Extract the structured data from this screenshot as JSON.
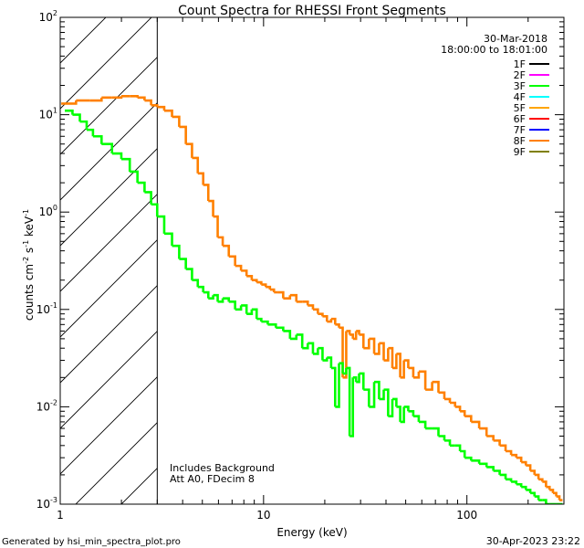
{
  "chart_data": {
    "type": "line",
    "title": "Count Spectra for RHESSI Front Segments",
    "xlabel": "Energy (keV)",
    "ylabel": "counts cm",
    "ylabel_sup": "-2",
    "ylabel_mid": " s",
    "ylabel_sup2": "-1",
    "ylabel_end": " keV",
    "ylabel_sup3": "-1",
    "xscale": "log",
    "yscale": "log",
    "xlim": [
      1,
      300
    ],
    "ylim": [
      0.001,
      100
    ],
    "x_ticks": [
      {
        "value": 1,
        "label": "1"
      },
      {
        "value": 10,
        "label": "10"
      },
      {
        "value": 100,
        "label": "100"
      }
    ],
    "y_ticks": [
      {
        "value": 100,
        "base": "10",
        "exp": "2"
      },
      {
        "value": 10,
        "base": "10",
        "exp": "1"
      },
      {
        "value": 1,
        "base": "10",
        "exp": "0"
      },
      {
        "value": 0.1,
        "base": "10",
        "exp": "-1"
      },
      {
        "value": 0.01,
        "base": "10",
        "exp": "-2"
      },
      {
        "value": 0.001,
        "base": "10",
        "exp": "-3"
      }
    ],
    "excluded_region": {
      "x": [
        1,
        3
      ],
      "style": "hatched"
    },
    "threshold_line": 3,
    "legend": {
      "placement": "top-right",
      "date": "30-Mar-2018",
      "time_range": "18:00:00 to 18:01:00",
      "entries": [
        {
          "label": "1F",
          "color": "#000000"
        },
        {
          "label": "2F",
          "color": "#ff00ff"
        },
        {
          "label": "3F",
          "color": "#00ff00"
        },
        {
          "label": "4F",
          "color": "#00ffff"
        },
        {
          "label": "5F",
          "color": "#ffa500"
        },
        {
          "label": "6F",
          "color": "#ff0000"
        },
        {
          "label": "7F",
          "color": "#0000ff"
        },
        {
          "label": "8F",
          "color": "#ff8000"
        },
        {
          "label": "9F",
          "color": "#808000"
        }
      ]
    },
    "annotations": [
      "Includes Background",
      "Att A0, FDecim 8"
    ],
    "series": [
      {
        "name": "8F",
        "color": "#ff8000",
        "x": [
          1.1,
          1.3,
          1.5,
          1.7,
          1.9,
          2.1,
          2.3,
          2.5,
          2.7,
          2.9,
          3.1,
          3.4,
          3.7,
          4.0,
          4.3,
          4.6,
          4.9,
          5.2,
          5.5,
          5.8,
          6.1,
          6.5,
          7.0,
          7.5,
          8.0,
          8.5,
          9.0,
          9.5,
          10,
          10.5,
          11,
          11.5,
          12,
          13,
          14,
          15,
          16,
          17,
          18,
          19,
          20,
          21,
          22,
          23,
          24,
          25,
          26,
          27,
          28,
          29,
          30,
          32,
          34,
          36,
          38,
          40,
          42,
          44,
          46,
          48,
          50,
          53,
          56,
          60,
          65,
          70,
          75,
          80,
          85,
          90,
          95,
          100,
          110,
          120,
          130,
          140,
          150,
          160,
          170,
          180,
          190,
          200,
          210,
          220,
          230,
          240,
          250,
          260,
          270,
          280,
          290
        ],
        "y": [
          13,
          14,
          14,
          15,
          15,
          15.5,
          15.5,
          15,
          14,
          12.5,
          12,
          11,
          9.5,
          7.5,
          5,
          3.6,
          2.5,
          1.9,
          1.3,
          0.9,
          0.55,
          0.45,
          0.35,
          0.28,
          0.25,
          0.22,
          0.2,
          0.19,
          0.18,
          0.17,
          0.16,
          0.15,
          0.15,
          0.13,
          0.14,
          0.12,
          0.12,
          0.11,
          0.1,
          0.09,
          0.085,
          0.075,
          0.08,
          0.07,
          0.065,
          0.02,
          0.06,
          0.055,
          0.05,
          0.06,
          0.055,
          0.04,
          0.05,
          0.035,
          0.045,
          0.03,
          0.04,
          0.025,
          0.035,
          0.02,
          0.03,
          0.025,
          0.02,
          0.023,
          0.015,
          0.018,
          0.014,
          0.012,
          0.011,
          0.01,
          0.009,
          0.008,
          0.007,
          0.006,
          0.005,
          0.0045,
          0.004,
          0.0035,
          0.0032,
          0.003,
          0.0027,
          0.0025,
          0.0022,
          0.002,
          0.0018,
          0.0017,
          0.0015,
          0.0014,
          0.0013,
          0.0012,
          0.0011
        ]
      },
      {
        "name": "3F",
        "color": "#00ff00",
        "x": [
          1.1,
          1.2,
          1.3,
          1.4,
          1.5,
          1.7,
          1.9,
          2.1,
          2.3,
          2.5,
          2.7,
          2.9,
          3.1,
          3.4,
          3.7,
          4.0,
          4.3,
          4.6,
          4.9,
          5.2,
          5.5,
          5.8,
          6.1,
          6.5,
          7.0,
          7.5,
          8.0,
          8.5,
          9.0,
          9.5,
          10,
          11,
          12,
          13,
          14,
          15,
          16,
          17,
          18,
          19,
          20,
          21,
          22,
          23,
          24,
          25,
          26,
          27,
          28,
          29,
          30,
          32,
          34,
          36,
          38,
          40,
          42,
          44,
          46,
          48,
          50,
          53,
          56,
          60,
          65,
          70,
          75,
          80,
          85,
          90,
          95,
          100,
          110,
          120,
          130,
          140,
          150,
          160,
          170,
          180,
          190,
          200,
          210,
          220,
          230,
          240,
          250,
          260,
          270,
          280,
          290
        ],
        "y": [
          11,
          10,
          8.5,
          7,
          6,
          5,
          4,
          3.5,
          2.6,
          2,
          1.6,
          1.2,
          0.9,
          0.6,
          0.45,
          0.33,
          0.26,
          0.2,
          0.17,
          0.15,
          0.13,
          0.14,
          0.12,
          0.13,
          0.12,
          0.1,
          0.11,
          0.09,
          0.1,
          0.08,
          0.075,
          0.07,
          0.065,
          0.06,
          0.05,
          0.055,
          0.04,
          0.045,
          0.035,
          0.04,
          0.03,
          0.032,
          0.025,
          0.01,
          0.028,
          0.022,
          0.025,
          0.005,
          0.02,
          0.018,
          0.022,
          0.015,
          0.01,
          0.018,
          0.012,
          0.015,
          0.008,
          0.012,
          0.01,
          0.007,
          0.01,
          0.009,
          0.008,
          0.007,
          0.006,
          0.006,
          0.005,
          0.0045,
          0.004,
          0.004,
          0.0035,
          0.003,
          0.0028,
          0.0026,
          0.0024,
          0.0022,
          0.002,
          0.0018,
          0.0017,
          0.0016,
          0.0015,
          0.0014,
          0.0013,
          0.0012,
          0.0011,
          0.0011,
          0.001,
          0.001,
          0.001,
          0.001,
          0.001
        ]
      }
    ]
  },
  "footer": {
    "generated_by": "Generated by hsi_min_spectra_plot.pro",
    "date": "30-Apr-2023 23:22"
  }
}
